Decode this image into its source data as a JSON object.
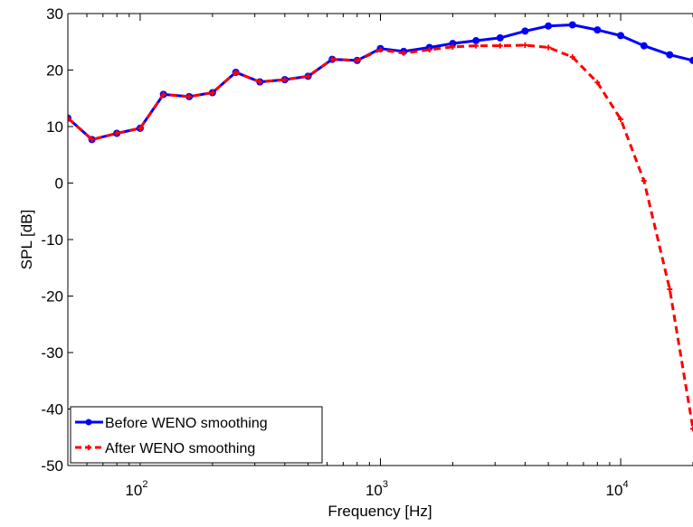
{
  "chart_data": {
    "type": "line",
    "xscale": "log",
    "xlim": [
      50,
      20000
    ],
    "ylim": [
      -50,
      30
    ],
    "xlabel": "Frequency [Hz]",
    "ylabel": "SPL [dB]",
    "xticks": [
      {
        "value": 100,
        "base": "10",
        "exp": "2"
      },
      {
        "value": 1000,
        "base": "10",
        "exp": "3"
      },
      {
        "value": 10000,
        "base": "10",
        "exp": "4"
      }
    ],
    "yticks": [
      {
        "value": 30,
        "label": "30"
      },
      {
        "value": 20,
        "label": "20"
      },
      {
        "value": 10,
        "label": "10"
      },
      {
        "value": 0,
        "label": "0"
      },
      {
        "value": -10,
        "label": "-10"
      },
      {
        "value": -20,
        "label": "-20"
      },
      {
        "value": -30,
        "label": "-30"
      },
      {
        "value": -40,
        "label": "-40"
      },
      {
        "value": -50,
        "label": "-50"
      }
    ],
    "grid": false,
    "legend_position": "bottom-left",
    "x": [
      50,
      63,
      80,
      100,
      125,
      160,
      200,
      250,
      315,
      400,
      500,
      630,
      800,
      1000,
      1250,
      1600,
      2000,
      2500,
      3150,
      4000,
      5000,
      6300,
      8000,
      10000,
      12500,
      16000,
      20000
    ],
    "series": [
      {
        "name": "Before WENO smoothing",
        "color": "#0000ff",
        "style": "solid",
        "marker": "circle",
        "values": [
          11.5,
          7.7,
          8.8,
          9.7,
          15.7,
          15.3,
          16.0,
          19.6,
          17.9,
          18.3,
          18.9,
          21.9,
          21.7,
          23.8,
          23.3,
          24.0,
          24.7,
          25.2,
          25.7,
          26.9,
          27.8,
          28.0,
          27.1,
          26.1,
          24.3,
          22.7,
          21.7
        ]
      },
      {
        "name": "After WENO smoothing",
        "color": "#ff0000",
        "style": "dashed",
        "marker": "plus",
        "values": [
          11.5,
          7.7,
          8.8,
          9.7,
          15.7,
          15.3,
          16.0,
          19.6,
          17.9,
          18.3,
          18.9,
          21.9,
          21.7,
          23.6,
          23.0,
          23.6,
          24.1,
          24.3,
          24.3,
          24.4,
          24.0,
          22.3,
          17.8,
          11.3,
          0.4,
          -18.8,
          -43.5
        ]
      }
    ]
  }
}
